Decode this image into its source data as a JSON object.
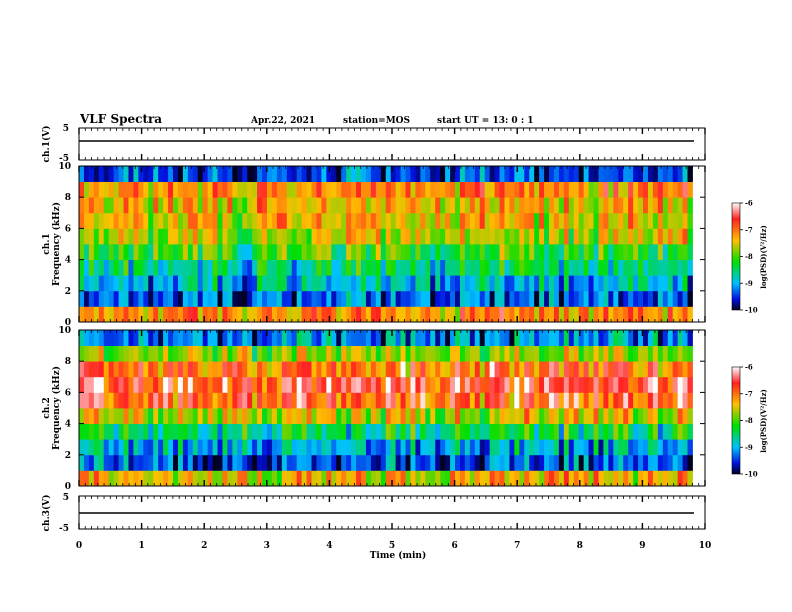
{
  "header": {
    "title": "VLF Spectra",
    "date": "Apr.22, 2021",
    "station": "station=MOS",
    "start_ut": "start  UT =  13: 0  : 1"
  },
  "labels": {
    "ch1_voltage_axis": "ch.1(V)",
    "ch1_freq_axis_a": "ch.1",
    "ch1_freq_axis_b": "Frequency (kHz)",
    "ch2_freq_axis_a": "ch.2",
    "ch2_freq_axis_b": "Frequency (kHz)",
    "ch3_voltage_axis": "ch.3(V)",
    "x_axis": "Time  (min)",
    "colorbar1": "log(PSD)(V²/Hz)",
    "colorbar2": "log(PSD)(V²/Hz)"
  },
  "chart_data": [
    {
      "type": "line",
      "name": "ch1-voltage",
      "ylabel": "ch.1(V)",
      "ylim": [
        -5,
        5
      ],
      "yticks": [
        "5",
        "-5"
      ],
      "x": [
        0,
        10
      ],
      "values": [
        -1,
        -1
      ]
    },
    {
      "type": "heatmap",
      "name": "ch1-spectrogram",
      "ylabel": "ch.1 Frequency (kHz)",
      "ylim": [
        0,
        10
      ],
      "yticks": [
        "0",
        "2",
        "4",
        "6",
        "8",
        "10"
      ],
      "xlim": [
        0,
        9.8
      ],
      "colorbar": {
        "range": [
          -10,
          -6
        ],
        "ticks": [
          "-6",
          "-7",
          "-8",
          "-9",
          "-10"
        ]
      },
      "frequency_kHz": [
        0.5,
        1.5,
        2.5,
        3.5,
        4.5,
        5.5,
        6.5,
        7.5,
        8.5,
        9.5
      ],
      "mean_log_psd": [
        -7.2,
        -9.4,
        -9.0,
        -8.6,
        -8.2,
        -7.7,
        -7.5,
        -7.4,
        -7.2,
        -9.5
      ]
    },
    {
      "type": "heatmap",
      "name": "ch2-spectrogram",
      "ylabel": "ch.2 Frequency (kHz)",
      "ylim": [
        0,
        10
      ],
      "yticks": [
        "0",
        "2",
        "4",
        "6",
        "8",
        "10"
      ],
      "xlim": [
        0,
        9.8
      ],
      "colorbar": {
        "range": [
          -10,
          -6
        ],
        "ticks": [
          "-6",
          "-7",
          "-8",
          "-9",
          "-10"
        ]
      },
      "frequency_kHz": [
        0.5,
        1.5,
        2.5,
        3.5,
        4.5,
        5.5,
        6.5,
        7.5,
        8.5,
        9.5
      ],
      "mean_log_psd": [
        -7.4,
        -9.4,
        -9.0,
        -8.5,
        -7.6,
        -6.8,
        -6.6,
        -6.9,
        -7.8,
        -9.2
      ]
    },
    {
      "type": "line",
      "name": "ch3-voltage",
      "ylabel": "ch.3(V)",
      "ylim": [
        -5,
        5
      ],
      "yticks": [
        "5",
        "-5"
      ],
      "x": [
        0,
        10
      ],
      "values": [
        -1,
        -1
      ]
    }
  ],
  "x_axis": {
    "xlim": [
      0,
      10
    ],
    "ticks": [
      "0",
      "1",
      "2",
      "3",
      "4",
      "5",
      "6",
      "7",
      "8",
      "9",
      "10"
    ]
  }
}
